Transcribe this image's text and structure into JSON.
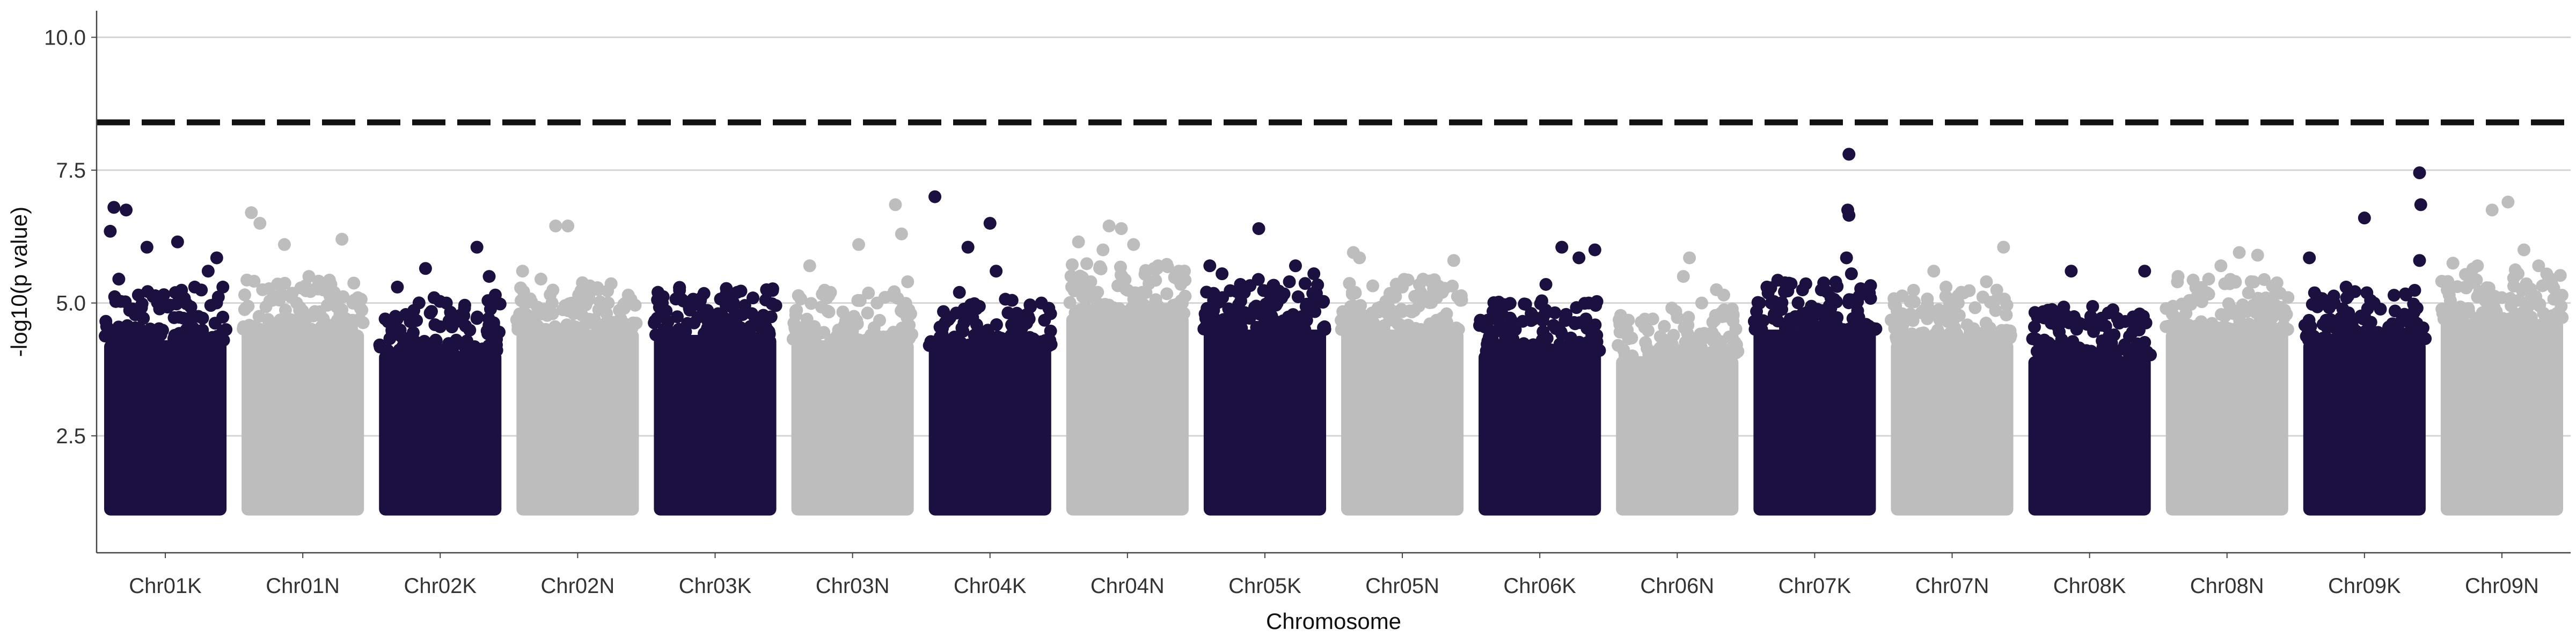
{
  "chart_data": {
    "type": "scatter",
    "title": "",
    "xlabel": "Chromosome",
    "ylabel": "-log10(p value)",
    "ylim": [
      0.3,
      10.5
    ],
    "yticks": [
      2.5,
      5.0,
      7.5,
      10.0
    ],
    "ytick_labels": [
      "2.5",
      "5.0",
      "7.5",
      "10.0"
    ],
    "threshold": 8.4,
    "threshold_style": "dashed",
    "grid": "horizontal major gridlines",
    "legend": "none",
    "colors": {
      "dark": "#1b1040",
      "light": "#bdbdbd",
      "threshold": "#111111",
      "grid": "#d4d4d4"
    },
    "categories": [
      "Chr01K",
      "Chr01N",
      "Chr02K",
      "Chr02N",
      "Chr03K",
      "Chr03N",
      "Chr04K",
      "Chr04N",
      "Chr05K",
      "Chr05N",
      "Chr06K",
      "Chr06N",
      "Chr07K",
      "Chr07N",
      "Chr08K",
      "Chr08N",
      "Chr09K",
      "Chr09N"
    ],
    "series": [
      {
        "chromosome": "Chr01K",
        "color": "dark",
        "min": 1.0,
        "bulk_top": 4.3,
        "peaks": [
          [
            0.08,
            6.8
          ],
          [
            0.18,
            6.75
          ],
          [
            0.05,
            6.35
          ],
          [
            0.35,
            6.05
          ],
          [
            0.6,
            6.15
          ],
          [
            0.92,
            5.85
          ],
          [
            0.85,
            5.6
          ],
          [
            0.12,
            5.45
          ],
          [
            0.74,
            5.3
          ],
          [
            0.45,
            5.0
          ],
          [
            0.28,
            5.15
          ],
          [
            0.97,
            5.3
          ]
        ]
      },
      {
        "chromosome": "Chr01N",
        "color": "light",
        "min": 1.0,
        "bulk_top": 4.5,
        "peaks": [
          [
            0.08,
            6.7
          ],
          [
            0.15,
            6.5
          ],
          [
            0.35,
            6.1
          ],
          [
            0.82,
            6.2
          ],
          [
            0.55,
            5.5
          ],
          [
            0.62,
            5.3
          ],
          [
            0.45,
            5.0
          ],
          [
            0.95,
            5.1
          ]
        ]
      },
      {
        "chromosome": "Chr02K",
        "color": "dark",
        "min": 1.0,
        "bulk_top": 4.1,
        "peaks": [
          [
            0.15,
            5.3
          ],
          [
            0.38,
            5.65
          ],
          [
            0.8,
            6.05
          ],
          [
            0.45,
            5.1
          ],
          [
            0.55,
            5.0
          ],
          [
            0.9,
            5.5
          ],
          [
            0.95,
            5.15
          ],
          [
            0.05,
            4.7
          ]
        ]
      },
      {
        "chromosome": "Chr02N",
        "color": "light",
        "min": 1.0,
        "bulk_top": 4.5,
        "peaks": [
          [
            0.32,
            6.45
          ],
          [
            0.42,
            6.45
          ],
          [
            0.05,
            5.6
          ],
          [
            0.2,
            5.45
          ],
          [
            0.6,
            5.2
          ],
          [
            0.75,
            5.0
          ],
          [
            0.88,
            4.9
          ]
        ]
      },
      {
        "chromosome": "Chr03K",
        "color": "dark",
        "min": 1.0,
        "bulk_top": 4.4,
        "peaks": [
          [
            0.38,
            5.05
          ],
          [
            0.65,
            5.0
          ],
          [
            0.68,
            5.2
          ],
          [
            0.92,
            5.25
          ],
          [
            0.1,
            4.85
          ],
          [
            0.5,
            4.7
          ],
          [
            0.8,
            4.8
          ]
        ]
      },
      {
        "chromosome": "Chr03N",
        "color": "light",
        "min": 1.0,
        "bulk_top": 4.3,
        "peaks": [
          [
            0.15,
            5.7
          ],
          [
            0.55,
            6.1
          ],
          [
            0.85,
            6.85
          ],
          [
            0.9,
            6.3
          ],
          [
            0.32,
            5.2
          ],
          [
            0.95,
            5.4
          ],
          [
            0.7,
            5.0
          ]
        ]
      },
      {
        "chromosome": "Chr04K",
        "color": "dark",
        "min": 1.0,
        "bulk_top": 4.2,
        "peaks": [
          [
            0.05,
            7.0
          ],
          [
            0.5,
            6.5
          ],
          [
            0.32,
            6.05
          ],
          [
            0.55,
            5.6
          ],
          [
            0.25,
            5.2
          ],
          [
            0.68,
            5.05
          ],
          [
            0.82,
            4.7
          ],
          [
            0.92,
            5.0
          ]
        ]
      },
      {
        "chromosome": "Chr04N",
        "color": "light",
        "min": 1.0,
        "bulk_top": 4.8,
        "peaks": [
          [
            0.1,
            6.15
          ],
          [
            0.35,
            6.45
          ],
          [
            0.45,
            6.4
          ],
          [
            0.3,
            6.0
          ],
          [
            0.55,
            6.1
          ],
          [
            0.75,
            5.7
          ],
          [
            0.92,
            5.6
          ],
          [
            0.62,
            5.2
          ],
          [
            0.2,
            5.4
          ]
        ]
      },
      {
        "chromosome": "Chr05K",
        "color": "dark",
        "min": 1.0,
        "bulk_top": 4.5,
        "peaks": [
          [
            0.45,
            6.4
          ],
          [
            0.05,
            5.7
          ],
          [
            0.15,
            5.55
          ],
          [
            0.3,
            5.35
          ],
          [
            0.7,
            5.4
          ],
          [
            0.75,
            5.7
          ],
          [
            0.9,
            5.55
          ],
          [
            0.55,
            5.1
          ],
          [
            0.6,
            5.0
          ]
        ]
      },
      {
        "chromosome": "Chr05N",
        "color": "light",
        "min": 1.0,
        "bulk_top": 4.5,
        "peaks": [
          [
            0.1,
            5.95
          ],
          [
            0.15,
            5.85
          ],
          [
            0.92,
            5.8
          ],
          [
            0.5,
            5.3
          ],
          [
            0.65,
            5.2
          ],
          [
            0.78,
            5.1
          ],
          [
            0.3,
            4.9
          ]
        ]
      },
      {
        "chromosome": "Chr06K",
        "color": "dark",
        "min": 1.0,
        "bulk_top": 4.1,
        "peaks": [
          [
            0.68,
            6.05
          ],
          [
            0.82,
            5.85
          ],
          [
            0.95,
            6.0
          ],
          [
            0.55,
            5.35
          ],
          [
            0.9,
            5.0
          ],
          [
            0.05,
            4.55
          ],
          [
            0.3,
            4.5
          ],
          [
            0.45,
            4.7
          ]
        ]
      },
      {
        "chromosome": "Chr06N",
        "color": "light",
        "min": 1.0,
        "bulk_top": 4.0,
        "peaks": [
          [
            0.6,
            5.85
          ],
          [
            0.55,
            5.5
          ],
          [
            0.82,
            5.25
          ],
          [
            0.88,
            5.15
          ],
          [
            0.7,
            5.0
          ],
          [
            0.3,
            4.7
          ],
          [
            0.05,
            4.6
          ]
        ]
      },
      {
        "chromosome": "Chr07K",
        "color": "dark",
        "min": 1.0,
        "bulk_top": 4.5,
        "peaks": [
          [
            0.78,
            7.8
          ],
          [
            0.77,
            6.75
          ],
          [
            0.78,
            6.65
          ],
          [
            0.76,
            5.85
          ],
          [
            0.8,
            5.55
          ],
          [
            0.05,
            5.0
          ],
          [
            0.62,
            4.95
          ],
          [
            0.92,
            5.25
          ],
          [
            0.3,
            4.7
          ]
        ]
      },
      {
        "chromosome": "Chr07N",
        "color": "light",
        "min": 1.0,
        "bulk_top": 4.3,
        "peaks": [
          [
            0.92,
            6.05
          ],
          [
            0.35,
            5.6
          ],
          [
            0.45,
            5.3
          ],
          [
            0.78,
            5.4
          ],
          [
            0.55,
            5.0
          ],
          [
            0.15,
            4.7
          ]
        ]
      },
      {
        "chromosome": "Chr08K",
        "color": "dark",
        "min": 1.0,
        "bulk_top": 4.0,
        "peaks": [
          [
            0.35,
            5.6
          ],
          [
            0.95,
            5.6
          ],
          [
            0.05,
            4.55
          ],
          [
            0.15,
            4.75
          ],
          [
            0.25,
            4.8
          ],
          [
            0.7,
            4.4
          ],
          [
            0.85,
            4.45
          ]
        ]
      },
      {
        "chromosome": "Chr08N",
        "color": "light",
        "min": 1.0,
        "bulk_top": 4.5,
        "peaks": [
          [
            0.6,
            5.95
          ],
          [
            0.75,
            5.9
          ],
          [
            0.1,
            5.5
          ],
          [
            0.35,
            5.45
          ],
          [
            0.45,
            5.7
          ],
          [
            0.25,
            5.1
          ],
          [
            0.9,
            5.2
          ]
        ]
      },
      {
        "chromosome": "Chr09K",
        "color": "dark",
        "min": 1.0,
        "bulk_top": 4.3,
        "peaks": [
          [
            0.95,
            7.45
          ],
          [
            0.96,
            6.85
          ],
          [
            0.5,
            6.6
          ],
          [
            0.95,
            5.8
          ],
          [
            0.05,
            5.85
          ],
          [
            0.35,
            5.3
          ],
          [
            0.55,
            5.05
          ],
          [
            0.75,
            4.85
          ],
          [
            0.25,
            5.0
          ]
        ]
      },
      {
        "chromosome": "Chr09N",
        "color": "light",
        "min": 1.0,
        "bulk_top": 4.7,
        "peaks": [
          [
            0.55,
            6.9
          ],
          [
            0.42,
            6.75
          ],
          [
            0.1,
            5.75
          ],
          [
            0.3,
            5.7
          ],
          [
            0.68,
            6.0
          ],
          [
            0.8,
            5.7
          ],
          [
            0.9,
            5.45
          ],
          [
            0.2,
            5.3
          ]
        ]
      }
    ]
  }
}
